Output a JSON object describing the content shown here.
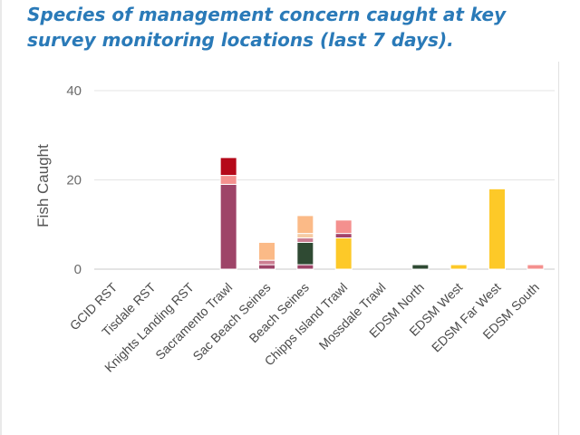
{
  "page": {
    "title": "Species of management concern caught at key survey monitoring locations (last 7 days)."
  },
  "chart_data": {
    "type": "bar",
    "stacked": true,
    "title": "Species of management concern caught at key survey monitoring locations (last 7 days).",
    "xlabel": "",
    "ylabel": "Fish Caught",
    "ylim": [
      0,
      40
    ],
    "yticks": [
      0,
      20,
      40
    ],
    "grid": true,
    "legend": "none",
    "categories": [
      "GCID RST",
      "Tisdale RST",
      "Knights Landing RST",
      "Sacramento Trawl",
      "Sac Beach Seines",
      "Beach Seines",
      "Chipps Island Trawl",
      "Mossdale Trawl",
      "EDSM North",
      "EDSM West",
      "EDSM Far West",
      "EDSM South"
    ],
    "series": [
      {
        "color": "#9e4468",
        "values": [
          0,
          0,
          0,
          19,
          1,
          1,
          0,
          0,
          0,
          0,
          0,
          0
        ]
      },
      {
        "color": "#2f4a33",
        "values": [
          0,
          0,
          0,
          0,
          0,
          5,
          0,
          0,
          1,
          0,
          0,
          0
        ]
      },
      {
        "color": "#fdc928",
        "values": [
          0,
          0,
          0,
          0,
          0,
          0,
          7,
          0,
          0,
          1,
          18,
          0
        ]
      },
      {
        "color": "#cc7e92",
        "values": [
          0,
          0,
          0,
          0,
          1,
          1,
          0,
          0,
          0,
          0,
          0,
          0
        ]
      },
      {
        "color": "#a3426a",
        "values": [
          0,
          0,
          0,
          0,
          0,
          0,
          1,
          0,
          0,
          0,
          0,
          0
        ]
      },
      {
        "color": "#f6cba4",
        "values": [
          0,
          0,
          0,
          0,
          0,
          1,
          0,
          0,
          0,
          0,
          0,
          0
        ]
      },
      {
        "color": "#f4908e",
        "values": [
          0,
          0,
          0,
          2,
          0,
          0,
          3,
          0,
          0,
          0,
          0,
          1
        ]
      },
      {
        "color": "#fbba87",
        "values": [
          0,
          0,
          0,
          0,
          4,
          4,
          0,
          0,
          0,
          0,
          0,
          0
        ]
      },
      {
        "color": "#b5091a",
        "values": [
          0,
          0,
          0,
          4,
          0,
          0,
          0,
          0,
          0,
          0,
          0,
          0
        ]
      }
    ]
  }
}
